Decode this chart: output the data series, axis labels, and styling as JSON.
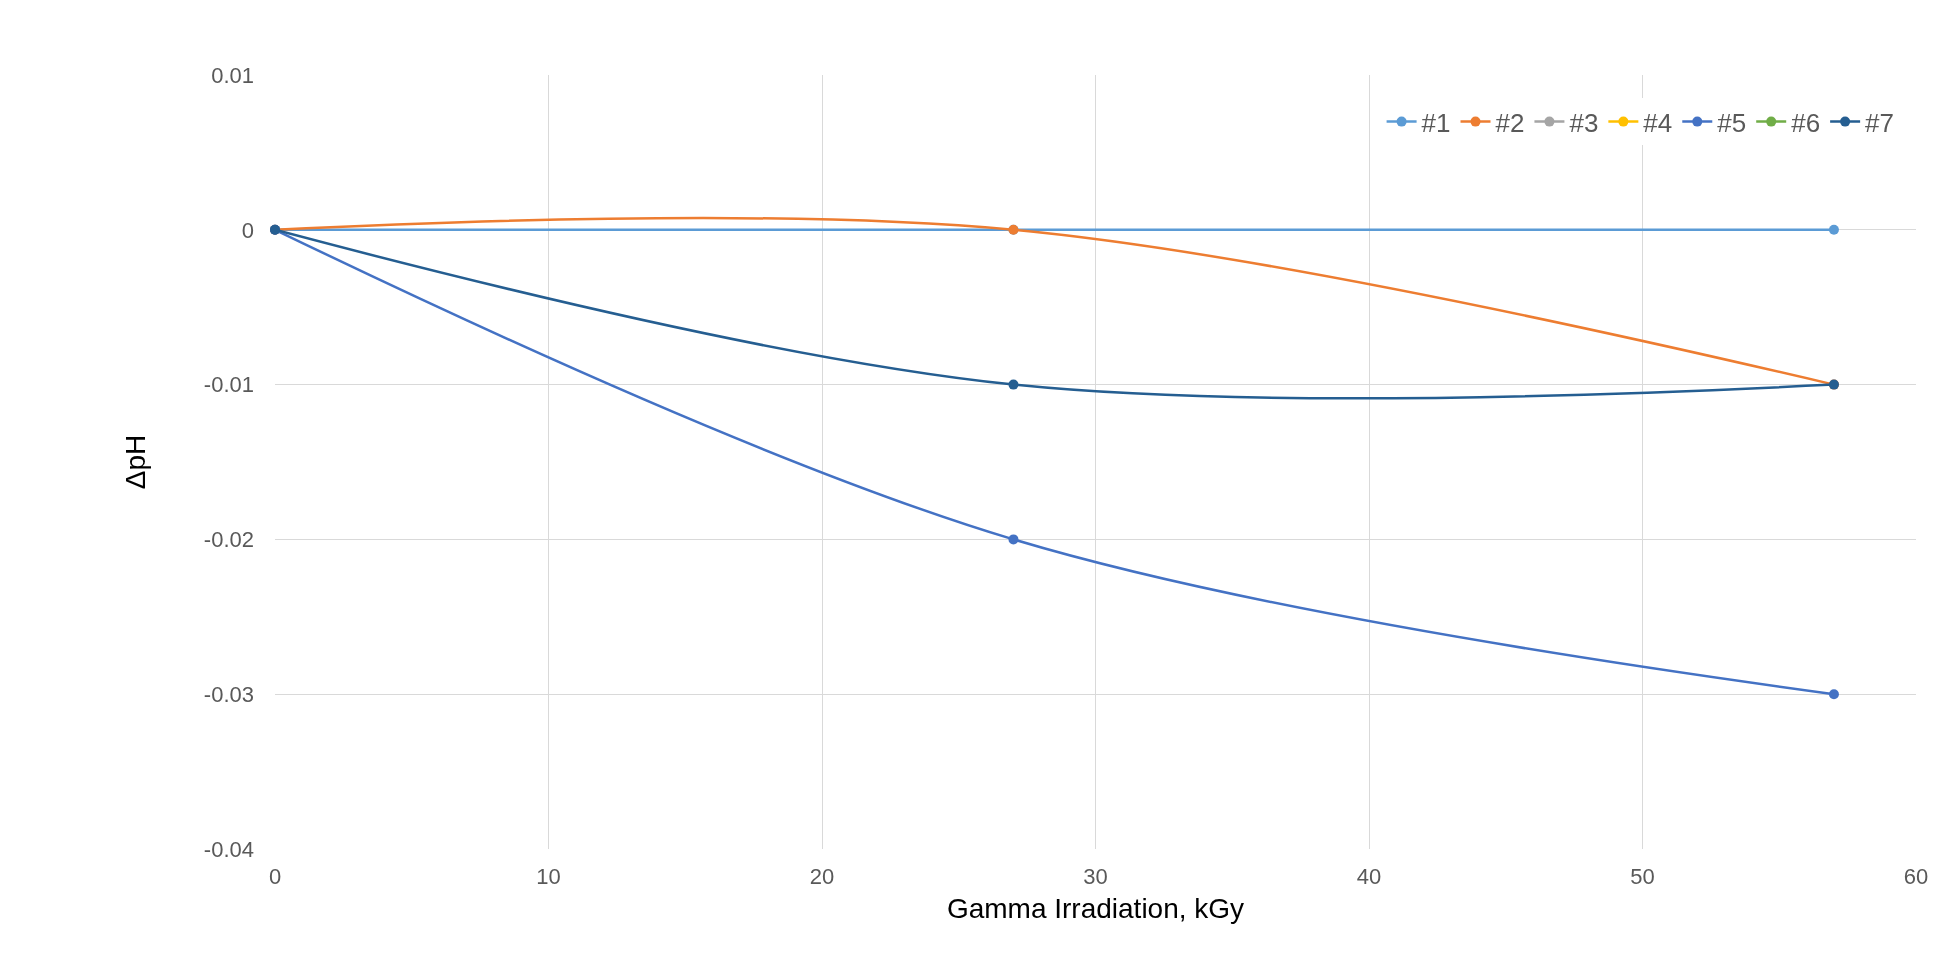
{
  "chart_data": {
    "type": "line",
    "xlabel": "Gamma Irradiation, kGy",
    "ylabel": "ΔpH",
    "x": [
      0,
      27,
      57
    ],
    "series": [
      {
        "name": "#1",
        "color": "#5b9bd5",
        "values": [
          0,
          0,
          0
        ]
      },
      {
        "name": "#2",
        "color": "#ed7d31",
        "values": [
          0,
          0,
          -0.01
        ]
      },
      {
        "name": "#3",
        "color": "#a5a5a5",
        "values": [
          null,
          null,
          null
        ]
      },
      {
        "name": "#4",
        "color": "#ffc000",
        "values": [
          null,
          null,
          null
        ]
      },
      {
        "name": "#5",
        "color": "#4472c4",
        "values": [
          0,
          -0.02,
          -0.03
        ]
      },
      {
        "name": "#6",
        "color": "#70ad47",
        "values": [
          null,
          null,
          null
        ]
      },
      {
        "name": "#7",
        "color": "#255e91",
        "values": [
          0,
          -0.01,
          -0.01
        ]
      }
    ],
    "xlim": [
      0,
      60
    ],
    "xticks": [
      0,
      10,
      20,
      30,
      40,
      50,
      60
    ],
    "ylim": [
      -0.04,
      0.01
    ],
    "yticks": [
      -0.04,
      -0.03,
      -0.02,
      -0.01,
      0,
      0.01
    ],
    "grid": true,
    "legend": "top right",
    "marker": "circle",
    "line_style": "solid"
  }
}
